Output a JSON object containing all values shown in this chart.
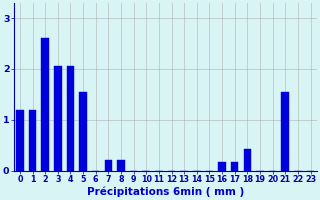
{
  "categories": [
    0,
    1,
    2,
    3,
    4,
    5,
    6,
    7,
    8,
    9,
    10,
    11,
    12,
    13,
    14,
    15,
    16,
    17,
    18,
    19,
    20,
    21,
    22,
    23
  ],
  "values": [
    1.2,
    1.2,
    2.6,
    2.05,
    2.05,
    1.55,
    0.0,
    0.22,
    0.22,
    0.0,
    0.0,
    0.0,
    0.0,
    0.0,
    0.0,
    0.0,
    0.18,
    0.18,
    0.42,
    0.0,
    0.0,
    1.55,
    0.0,
    0.0
  ],
  "bar_color": "#0000dd",
  "bg_color": "#d8f4f4",
  "grid_color": "#aaaaaa",
  "axis_color": "#0000aa",
  "text_color": "#0000cc",
  "xlabel": "Précipitations 6min ( mm )",
  "xlim": [
    -0.5,
    23.5
  ],
  "ylim": [
    0,
    3.3
  ],
  "yticks": [
    0,
    1,
    2,
    3
  ],
  "tick_fontsize": 5.8,
  "label_fontsize": 7.5
}
